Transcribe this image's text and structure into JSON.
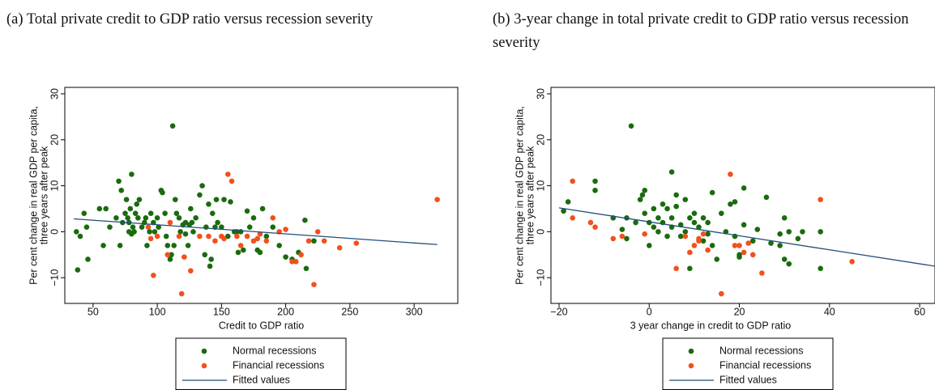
{
  "chart_data": [
    {
      "type": "scatter",
      "title": "(a) Total private credit to GDP ratio versus recession severity",
      "xlabel": "Credit to GDP ratio",
      "ylabel": [
        "Per cent change in real GDP per capita,",
        "three years after peak"
      ],
      "xlim": [
        28,
        334
      ],
      "ylim": [
        -15.6,
        31.4
      ],
      "xticks": [
        50,
        100,
        150,
        200,
        250,
        300
      ],
      "yticks": [
        {
          "value": -10,
          "label": "−10"
        },
        0,
        10,
        20,
        30
      ],
      "series": [
        {
          "name": "Normal recessions",
          "color": "#1a6b0e",
          "x": [
            37,
            38,
            40,
            43,
            45,
            46,
            55,
            58,
            60,
            63,
            68,
            70,
            71,
            72,
            73,
            75,
            76,
            77,
            78,
            78,
            79,
            80,
            80,
            81,
            82,
            83,
            84,
            85,
            86,
            88,
            90,
            91,
            92,
            94,
            95,
            97,
            98,
            100,
            101,
            103,
            104,
            106,
            107,
            108,
            110,
            111,
            112,
            113,
            114,
            115,
            117,
            118,
            120,
            122,
            122,
            124,
            125,
            126,
            127,
            128,
            130,
            133,
            135,
            137,
            138,
            140,
            141,
            142,
            143,
            145,
            146,
            147,
            150,
            152,
            155,
            157,
            160,
            162,
            163,
            165,
            167,
            170,
            172,
            175,
            178,
            180,
            182,
            185,
            190,
            195,
            200,
            205,
            210,
            215,
            216,
            222
          ],
          "values": [
            0,
            -8.3,
            -1,
            4,
            1,
            -6,
            5,
            -3,
            5,
            1,
            3,
            11,
            -3,
            9,
            2,
            4,
            7,
            3,
            0,
            2,
            5,
            12.5,
            -0.5,
            1,
            0,
            4,
            6,
            3,
            7,
            1,
            2,
            3,
            -3,
            0,
            4,
            2,
            0,
            3,
            1,
            9,
            8.5,
            4,
            -1,
            -3,
            -6,
            -5,
            23,
            -3,
            7,
            4,
            3,
            0,
            1.5,
            -0.5,
            2,
            -3,
            1.5,
            5,
            2,
            0,
            3,
            8,
            10,
            -5,
            1,
            6,
            -7.5,
            -6,
            4,
            1,
            7,
            2,
            1,
            7,
            -1,
            6.5,
            0,
            0,
            -4.5,
            0,
            -4,
            4.5,
            1,
            3,
            -4,
            -4.5,
            5,
            -1,
            1,
            -3,
            -5.5,
            -6,
            -4.5,
            2.5,
            -8,
            -2
          ]
        },
        {
          "name": "Financial recessions",
          "color": "#f2501c",
          "x": [
            93,
            95,
            97,
            100,
            108,
            110,
            117,
            119,
            121,
            126,
            133,
            140,
            145,
            150,
            152,
            155,
            158,
            162,
            165,
            170,
            175,
            178,
            180,
            185,
            190,
            195,
            200,
            205,
            208,
            212,
            218,
            222,
            225,
            230,
            242,
            255,
            318
          ],
          "values": [
            1,
            -1.5,
            -9.5,
            -1,
            -5,
            2,
            -1,
            -13.5,
            -5.5,
            -8.5,
            -1,
            -1,
            -2,
            -1,
            -1.5,
            12.5,
            11,
            -1,
            -3,
            -1,
            -2,
            -1.5,
            -0.5,
            -2,
            3,
            0,
            0.5,
            -6.5,
            -6.5,
            -5,
            -2,
            -11.5,
            0,
            -2,
            -3.5,
            -2.5,
            7
          ]
        },
        {
          "name": "Fitted values",
          "color": "#1f4e79",
          "line": true,
          "x": [
            35,
            318
          ],
          "values": [
            2.8,
            -2.8
          ]
        }
      ]
    },
    {
      "type": "scatter",
      "title": "(b) 3-year change in total private credit to GDP ratio versus recession severity",
      "xlabel": "3 year change in credit to GDP ratio",
      "ylabel": [
        "Per cent change in real GDP per capita,",
        "three years after peak"
      ],
      "xlim": [
        -21.8,
        63.4
      ],
      "ylim": [
        -15.6,
        31.4
      ],
      "xticks": [
        {
          "value": -20,
          "label": "−20"
        },
        0,
        20,
        40,
        60
      ],
      "yticks": [
        {
          "value": -10,
          "label": "−10"
        },
        0,
        10,
        20,
        30
      ],
      "series": [
        {
          "name": "Normal recessions",
          "color": "#1a6b0e",
          "x": [
            -19,
            -18,
            -12,
            -12,
            -8,
            -6,
            -5,
            -5,
            -4,
            -3,
            -2,
            -1.5,
            -1,
            -1,
            0,
            0,
            1,
            1,
            2,
            2,
            3,
            3,
            4,
            4,
            5,
            5,
            5,
            6,
            6,
            7,
            7,
            8,
            8,
            9,
            9,
            10,
            10,
            11,
            12,
            12,
            13,
            13,
            14,
            14,
            15,
            16,
            17,
            18,
            19,
            19,
            20,
            20,
            21,
            21,
            23,
            24,
            26,
            27,
            29,
            29,
            30,
            30,
            31,
            31,
            33,
            34,
            38,
            38
          ],
          "values": [
            4.5,
            6.5,
            11,
            9,
            3,
            0.5,
            -1.5,
            3,
            23,
            2,
            7,
            8,
            9,
            4,
            2,
            -3,
            1,
            5,
            3,
            0,
            6,
            2,
            5,
            -1,
            13,
            1,
            3,
            5.5,
            8,
            1.5,
            -1,
            7,
            0,
            3,
            -8,
            2,
            4,
            1,
            3,
            -2,
            2,
            -0.5,
            8.5,
            -3,
            -6,
            4,
            0,
            6,
            6.5,
            -1,
            -5,
            -5.5,
            1.5,
            9.5,
            -2,
            0.5,
            7.5,
            -2.5,
            -3,
            -0.5,
            -6,
            3,
            0,
            -7,
            -1.5,
            0,
            -8,
            0
          ]
        },
        {
          "name": "Financial recessions",
          "color": "#f2501c",
          "x": [
            -17,
            -17,
            -13,
            -12,
            -8,
            -6,
            -1,
            6,
            8,
            9,
            10,
            11,
            11,
            12,
            13,
            16,
            18,
            19,
            20,
            21,
            22,
            23,
            25,
            38,
            45
          ],
          "values": [
            11,
            3,
            2,
            1,
            -1.5,
            -1,
            -0.5,
            -8,
            -1,
            -4.5,
            -3,
            -1.5,
            -2,
            -0.5,
            -4,
            -13.5,
            12.5,
            -3,
            -3,
            -4.5,
            -2.5,
            -5,
            -9,
            7,
            -6.5
          ]
        },
        {
          "name": "Fitted values",
          "color": "#1f4e79",
          "line": true,
          "x": [
            -20,
            63.4
          ],
          "values": [
            5.2,
            -7.5
          ]
        }
      ]
    }
  ]
}
